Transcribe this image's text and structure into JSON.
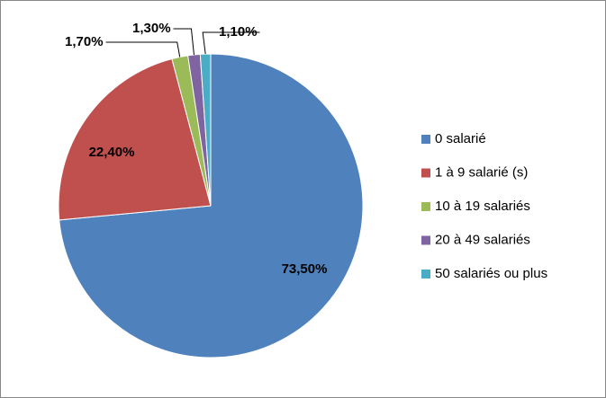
{
  "chart_data": {
    "type": "pie",
    "categories": [
      "0 salarié",
      "1 à 9 salarié (s)",
      "10 à 19 salariés",
      "20 à 49 salariés",
      "50 salariés ou plus"
    ],
    "values": [
      73.5,
      22.4,
      1.7,
      1.3,
      1.1
    ],
    "value_labels": [
      "73,50%",
      "22,40%",
      "1,70%",
      "1,30%",
      "1,10%"
    ],
    "colors": [
      "#4f81bd",
      "#c0504d",
      "#9bbb59",
      "#8064a2",
      "#4bacc6"
    ],
    "legend": "right"
  }
}
